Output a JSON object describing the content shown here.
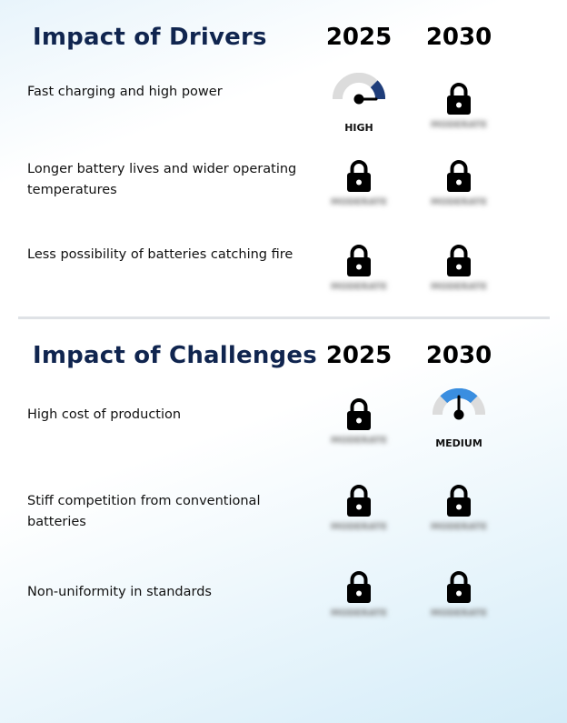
{
  "colors": {
    "title": "#10254f",
    "gauge_high": "#1f3d7a",
    "gauge_medium": "#3a8ee0",
    "gauge_track": "#dcdcdc"
  },
  "drivers": {
    "title": "Impact of Drivers",
    "year1": "2025",
    "year2": "2030",
    "rows": [
      {
        "label": "Fast charging and high power",
        "c1": {
          "type": "gauge",
          "level": "high",
          "label": "HIGH"
        },
        "c2": {
          "type": "locked",
          "icon": "lock-icon",
          "blurred_text": "MODERATE"
        }
      },
      {
        "label": "Longer battery lives and wider operating temperatures",
        "c1": {
          "type": "locked",
          "icon": "lock-icon",
          "blurred_text": "MODERATE"
        },
        "c2": {
          "type": "locked",
          "icon": "lock-icon",
          "blurred_text": "MODERATE"
        }
      },
      {
        "label": "Less possibility of batteries catching fire",
        "c1": {
          "type": "locked",
          "icon": "lock-icon",
          "blurred_text": "MODERATE"
        },
        "c2": {
          "type": "locked",
          "icon": "lock-icon",
          "blurred_text": "MODERATE"
        }
      }
    ]
  },
  "challenges": {
    "title": "Impact of Challenges",
    "year1": "2025",
    "year2": "2030",
    "rows": [
      {
        "label": "High cost of production",
        "c1": {
          "type": "locked",
          "icon": "lock-icon",
          "blurred_text": "MODERATE"
        },
        "c2": {
          "type": "gauge",
          "level": "medium",
          "label": "MEDIUM"
        }
      },
      {
        "label": "Stiff competition from conventional batteries",
        "c1": {
          "type": "locked",
          "icon": "lock-icon",
          "blurred_text": "MODERATE"
        },
        "c2": {
          "type": "locked",
          "icon": "lock-icon",
          "blurred_text": "MODERATE"
        }
      },
      {
        "label": "Non-uniformity in standards",
        "c1": {
          "type": "locked",
          "icon": "lock-icon",
          "blurred_text": "MODERATE"
        },
        "c2": {
          "type": "locked",
          "icon": "lock-icon",
          "blurred_text": "MODERATE"
        }
      }
    ]
  }
}
